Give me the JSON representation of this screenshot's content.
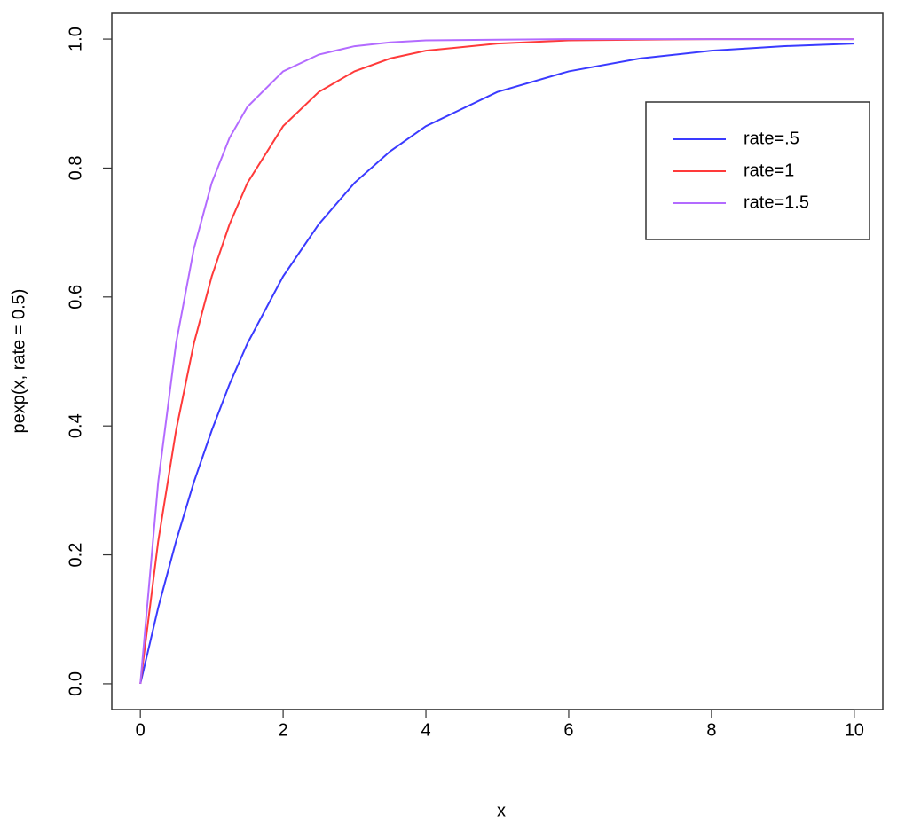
{
  "chart_data": {
    "type": "line",
    "x_label": "x",
    "y_label": "pexp(x, rate = 0.5)",
    "x": [
      0,
      0.25,
      0.5,
      0.75,
      1,
      1.25,
      1.5,
      2,
      2.5,
      3,
      3.5,
      4,
      5,
      6,
      7,
      8,
      9,
      10
    ],
    "series": [
      {
        "name": "rate=.5",
        "color": "#3a3aff",
        "values": [
          0,
          0.118,
          0.221,
          0.313,
          0.393,
          0.465,
          0.528,
          0.632,
          0.713,
          0.777,
          0.826,
          0.865,
          0.918,
          0.95,
          0.97,
          0.982,
          0.989,
          0.993
        ]
      },
      {
        "name": "rate=1",
        "color": "#ff3a3a",
        "values": [
          0,
          0.221,
          0.393,
          0.528,
          0.632,
          0.713,
          0.777,
          0.865,
          0.918,
          0.95,
          0.97,
          0.982,
          0.993,
          0.998,
          0.999,
          1.0,
          1.0,
          1.0
        ]
      },
      {
        "name": "rate=1.5",
        "color": "#b36bff",
        "values": [
          0,
          0.313,
          0.528,
          0.675,
          0.777,
          0.847,
          0.895,
          0.95,
          0.976,
          0.989,
          0.995,
          0.998,
          0.999,
          1.0,
          1.0,
          1.0,
          1.0,
          1.0
        ]
      }
    ],
    "xlim": [
      -0.4,
      10.4
    ],
    "ylim": [
      -0.04,
      1.04
    ],
    "xticks": [
      0,
      2,
      4,
      6,
      8,
      10
    ],
    "yticks": [
      {
        "value": 0,
        "label": "0.0"
      },
      0.2,
      0.4,
      0.6,
      0.8,
      {
        "value": 1,
        "label": "1.0"
      }
    ],
    "legend": "topright"
  }
}
